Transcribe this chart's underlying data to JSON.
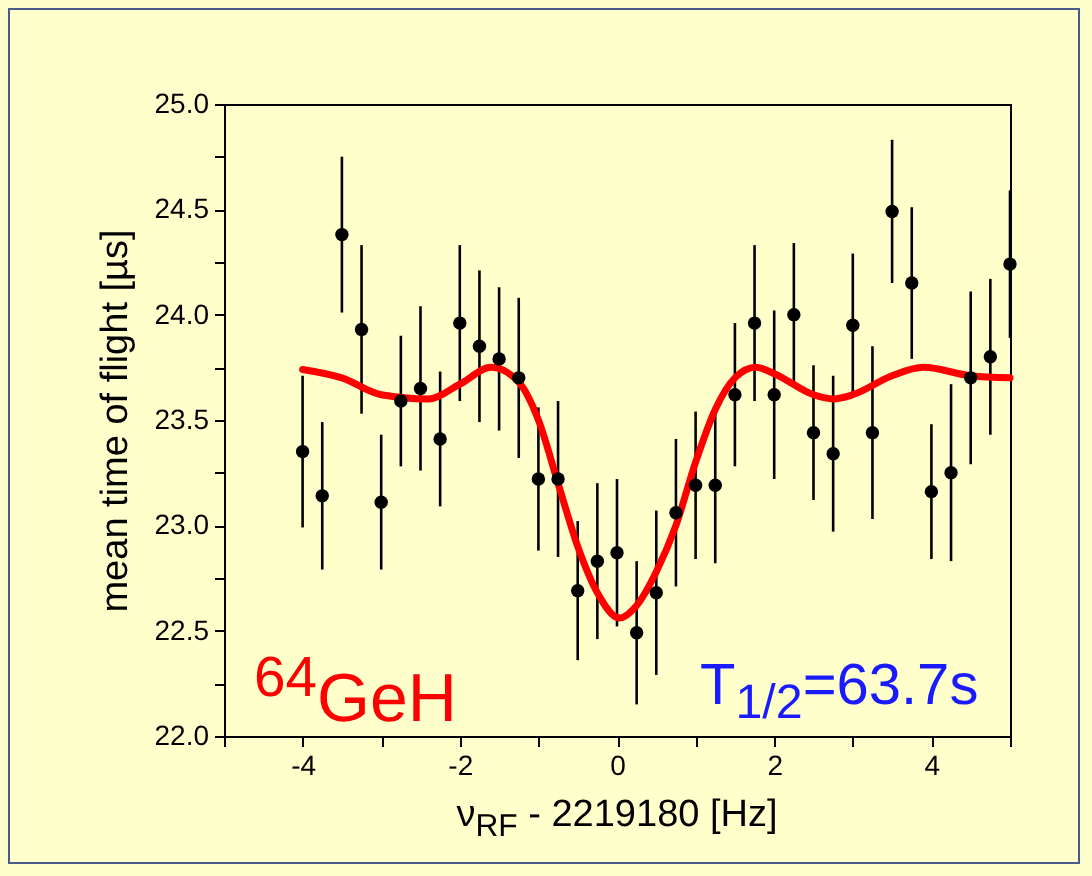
{
  "chart_data": {
    "type": "scatter",
    "xlabel": "ν$_{RF}$ - 2219180 [Hz]",
    "ylabel": "mean time of flight [µs]",
    "annotations": [
      "$^{64}$GeH",
      "T$_{1/2}$=63.7s"
    ],
    "xlim": [
      -5,
      5
    ],
    "xticks": [
      {
        "value": -5,
        "label": null
      },
      -4,
      {
        "value": -3,
        "label": null
      },
      -2,
      {
        "value": -1,
        "label": null
      },
      0,
      {
        "value": 1,
        "label": null
      },
      2,
      {
        "value": 3,
        "label": null
      },
      4,
      {
        "value": 5,
        "label": null
      }
    ],
    "ylim": [
      22,
      25
    ],
    "yticks": [
      {
        "value": 22,
        "label": "22.0"
      },
      {
        "value": 22.25,
        "label": null
      },
      22.5,
      {
        "value": 22.75,
        "label": null
      },
      {
        "value": 23,
        "label": "23.0"
      },
      {
        "value": 23.25,
        "label": null
      },
      23.5,
      {
        "value": 23.75,
        "label": null
      },
      {
        "value": 24,
        "label": "24.0"
      },
      {
        "value": 24.25,
        "label": null
      },
      24.5,
      {
        "value": 24.75,
        "label": null
      },
      {
        "value": 25,
        "label": "25.0"
      }
    ],
    "grid": false,
    "series": [
      {
        "color": "#000000",
        "marker": "circle",
        "x": [
          -4,
          -3.75,
          -3.5,
          -3.25,
          -3,
          -2.75,
          -2.5,
          -2.25,
          -2,
          -1.75,
          -1.5,
          -1.25,
          -1,
          -0.75,
          -0.5,
          -0.25,
          0,
          0.25,
          0.5,
          0.75,
          1,
          1.25,
          1.5,
          1.75,
          2,
          2.25,
          2.5,
          2.75,
          3,
          3.25,
          3.5,
          3.75,
          4,
          4.25,
          4.5,
          4.75,
          5
        ],
        "values": [
          23.35,
          23.14,
          24.38,
          23.93,
          23.11,
          23.59,
          23.65,
          23.41,
          23.96,
          23.85,
          23.79,
          23.7,
          23.22,
          23.22,
          22.69,
          22.83,
          22.87,
          22.49,
          22.68,
          23.06,
          23.19,
          23.19,
          23.62,
          23.96,
          23.62,
          24.0,
          23.44,
          23.34,
          23.95,
          23.44,
          24.49,
          24.15,
          23.16,
          23.25,
          23.7,
          23.8,
          24.24
        ],
        "errors": [
          0.36,
          0.35,
          0.37,
          0.4,
          0.32,
          0.31,
          0.39,
          0.32,
          0.37,
          0.36,
          0.34,
          0.38,
          0.34,
          0.37,
          0.33,
          0.37,
          0.35,
          0.34,
          0.39,
          0.35,
          0.35,
          0.37,
          0.34,
          0.37,
          0.4,
          0.34,
          0.32,
          0.37,
          0.34,
          0.41,
          0.34,
          0.36,
          0.32,
          0.42,
          0.41,
          0.37,
          0.35
        ]
      },
      {
        "type": "line",
        "color": "#ff0000",
        "x": [
          -4,
          -3.5,
          -3,
          -2.4,
          -2,
          -1.6,
          -1.25,
          -1,
          -0.75,
          -0.5,
          -0.25,
          0.03,
          0.25,
          0.5,
          0.75,
          1,
          1.25,
          1.5,
          1.77,
          2,
          2.5,
          2.75,
          3,
          3.5,
          3.9,
          4.5,
          5
        ],
        "values": [
          23.74,
          23.7,
          23.62,
          23.6,
          23.67,
          23.75,
          23.68,
          23.5,
          23.2,
          22.9,
          22.68,
          22.56,
          22.62,
          22.78,
          23.0,
          23.3,
          23.55,
          23.7,
          23.75,
          23.72,
          23.62,
          23.6,
          23.62,
          23.71,
          23.75,
          23.71,
          23.7
        ]
      }
    ]
  }
}
